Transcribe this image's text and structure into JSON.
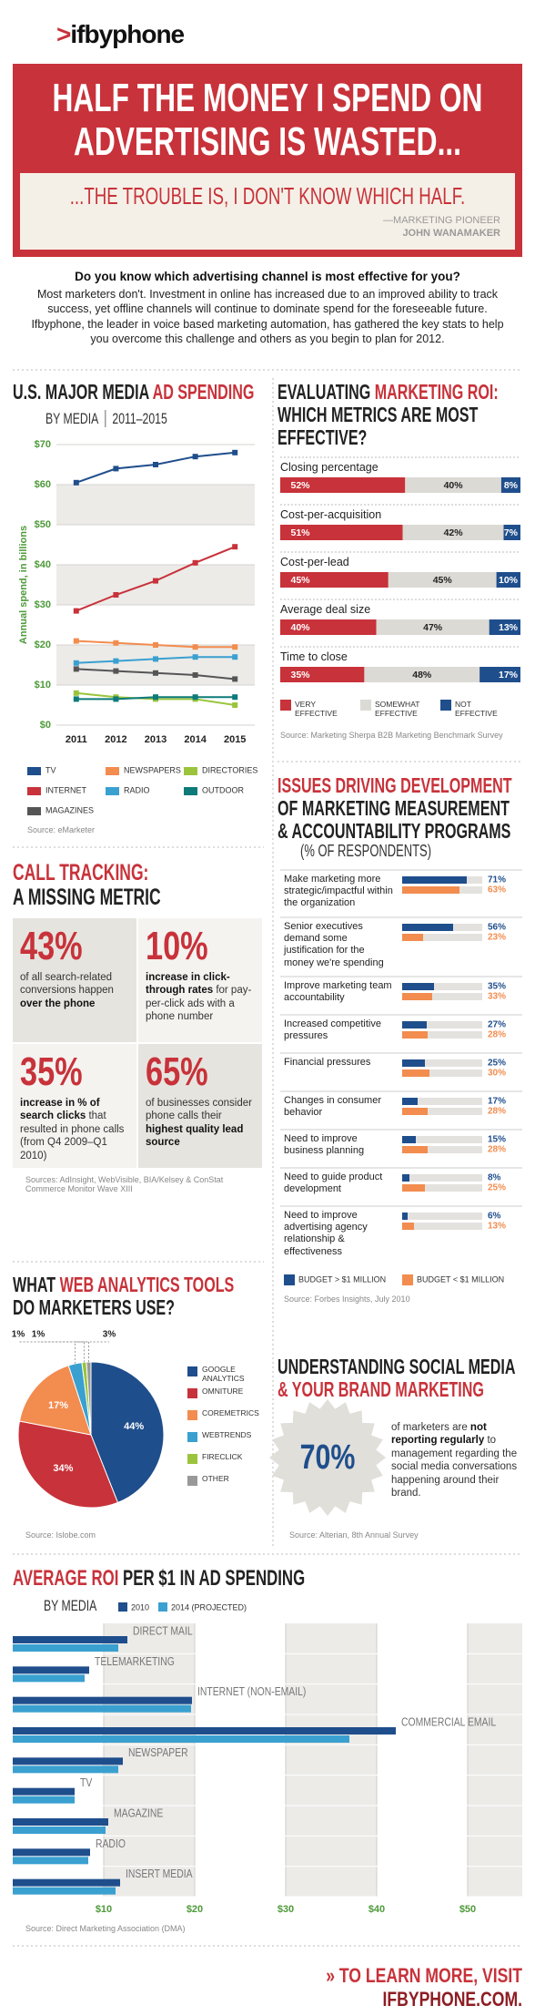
{
  "header": {
    "logo_mark": ">",
    "logo": "ifbyphone",
    "headline": "HALF THE MONEY I SPEND ON ADVERTISING IS WASTED...",
    "subhead": "...THE TROUBLE IS, I DON'T KNOW WHICH HALF.",
    "attribution_role": "—MARKETING PIONEER",
    "attribution_name": "JOHN WANAMAKER"
  },
  "intro": {
    "question": "Do you know which advertising channel is most effective for you?",
    "text": "Most marketers don't. Investment in online has increased due to an improved ability to track success, yet offline channels will continue to dominate spend for the foreseeable future. Ifbyphone, the leader in voice based marketing automation, has gathered the key stats to help you overcome this challenge and others as you begin to plan for 2012."
  },
  "call_tracking": {
    "title": [
      [
        {
          "text": "CALL TRACKING:",
          "accent": true
        }
      ],
      [
        "A MISSING METRIC"
      ]
    ],
    "stats": [
      {
        "value": "43%",
        "parts": [
          {
            "text": "of all search-related conversions happen ",
            "bold": false
          },
          {
            "text": "over the phone",
            "bold": true
          }
        ]
      },
      {
        "value": "10%",
        "parts": [
          {
            "text": "increase in click-through rates",
            "bold": true
          },
          {
            "text": " for pay-per-click ads with a phone number",
            "bold": false
          }
        ]
      },
      {
        "value": "35%",
        "parts": [
          {
            "text": "increase in % of search clicks",
            "bold": true
          },
          {
            "text": " that resulted in phone calls (from Q4 2009–Q1 2010)",
            "bold": false
          }
        ]
      },
      {
        "value": "65%",
        "parts": [
          {
            "text": "of businesses consider phone calls their ",
            "bold": false
          },
          {
            "text": "highest quality lead source",
            "bold": true
          }
        ]
      }
    ],
    "source": "Sources: AdInsight, WebVisible, BIA/Kelsey & ConStat Commerce Monitor Wave XIII"
  },
  "social_media": {
    "title": [
      [
        "UNDERSTANDING SOCIAL MEDIA"
      ],
      [
        {
          "text": "& YOUR BRAND MARKETING",
          "accent": true
        }
      ]
    ],
    "stat": "70%",
    "parts": [
      {
        "text": "of marketers are ",
        "bold": false
      },
      {
        "text": "not reporting regularly",
        "bold": true
      },
      {
        "text": " to management regarding the social media conversations happening around their brand.",
        "bold": false
      }
    ],
    "source": "Source: Alterian, 8th Annual Survey"
  },
  "chart_data": [
    {
      "type": "line",
      "title": [
        [
          "U.S. MAJOR MEDIA ",
          {
            "text": "AD SPENDING",
            "accent": true
          }
        ]
      ],
      "subtitle": "BY MEDIA",
      "period": "2011–2015",
      "ylabel": "Annual spend, in billions",
      "categories": [
        "2011",
        "2012",
        "2013",
        "2014",
        "2015"
      ],
      "ylim": [
        0,
        70
      ],
      "yticks": [
        {
          "value": 0,
          "label": "$0"
        },
        {
          "value": 10,
          "label": "$10"
        },
        {
          "value": 20,
          "label": "$20"
        },
        {
          "value": 30,
          "label": "$30"
        },
        {
          "value": 40,
          "label": "$40"
        },
        {
          "value": 50,
          "label": "$50"
        },
        {
          "value": 60,
          "label": "$60"
        },
        {
          "value": 70,
          "label": "$70"
        }
      ],
      "grid": true,
      "series": [
        {
          "name": "TV",
          "color": "#1f4e8c",
          "values": [
            60.5,
            64,
            65,
            67,
            68
          ]
        },
        {
          "name": "NEWSPAPERS",
          "color": "#f28c4f",
          "values": [
            21,
            20.5,
            20,
            19.5,
            19.5
          ]
        },
        {
          "name": "DIRECTORIES",
          "color": "#9bc43c",
          "values": [
            8,
            7,
            6.5,
            6.5,
            5
          ]
        },
        {
          "name": "INTERNET",
          "color": "#c8323a",
          "values": [
            28.5,
            32.5,
            36,
            40.5,
            44.5
          ]
        },
        {
          "name": "RADIO",
          "color": "#3aa0d0",
          "values": [
            15.5,
            16,
            16.5,
            17,
            17
          ]
        },
        {
          "name": "OUTDOOR",
          "color": "#0e7a7a",
          "values": [
            6.5,
            6.5,
            7,
            7,
            7
          ]
        },
        {
          "name": "MAGAZINES",
          "color": "#555555",
          "values": [
            14,
            13.5,
            13,
            12.5,
            11.5
          ]
        }
      ],
      "source": "Source: eMarketer"
    },
    {
      "type": "stacked_bar",
      "title": [
        [
          "EVALUATING ",
          {
            "text": "MARKETING ROI:",
            "accent": true
          }
        ],
        [
          "WHICH METRICS ARE MOST"
        ],
        [
          "EFFECTIVE?"
        ]
      ],
      "categories": [
        "Closing percentage",
        "Cost-per-acquisition",
        "Cost-per-lead",
        "Average deal size",
        "Time to close"
      ],
      "series": [
        {
          "name": "VERY EFFECTIVE",
          "color": "#c8323a",
          "values": [
            52,
            51,
            45,
            40,
            35
          ],
          "value_labels": [
            "52%",
            "51%",
            "45%",
            "40%",
            "35%"
          ]
        },
        {
          "name": "SOMEWHAT EFFECTIVE",
          "color": "#dcdad5",
          "values": [
            40,
            42,
            45,
            47,
            48
          ],
          "value_labels": [
            "40%",
            "42%",
            "45%",
            "47%",
            "48%"
          ]
        },
        {
          "name": "NOT EFFECTIVE",
          "color": "#1f4e8c",
          "values": [
            8,
            7,
            10,
            13,
            17
          ],
          "value_labels": [
            "8%",
            "7%",
            "10%",
            "13%",
            "17%"
          ]
        }
      ],
      "source": "Source: Marketing Sherpa B2B Marketing Benchmark Survey"
    },
    {
      "type": "grouped_bar",
      "title": [
        [
          {
            "text": "ISSUES DRIVING DEVELOPMENT",
            "accent": true
          }
        ],
        [
          "OF MARKETING MEASUREMENT"
        ],
        [
          "& ACCOUNTABILITY PROGRAMS"
        ]
      ],
      "subtitle": "(% OF RESPONDENTS)",
      "categories": [
        "Make marketing more strategic/impactful within the organization",
        "Senior executives demand some justification for the money we're spending",
        "Improve marketing team accountability",
        "Increased competitive pressures",
        "Financial pressures",
        "Changes in consumer behavior",
        "Need to improve business planning",
        "Need to guide product development",
        "Need to improve advertising agency relationship & effectiveness"
      ],
      "series": [
        {
          "name": "BUDGET > $1 MILLION",
          "color": "#1f4e8c",
          "values": [
            71,
            56,
            35,
            27,
            25,
            17,
            15,
            8,
            6
          ],
          "value_labels": [
            "71%",
            "56%",
            "35%",
            "27%",
            "25%",
            "17%",
            "15%",
            "8%",
            "6%"
          ]
        },
        {
          "name": "BUDGET < $1 MILLION",
          "color": "#f28c4f",
          "values": [
            63,
            23,
            33,
            28,
            30,
            28,
            28,
            25,
            13
          ],
          "value_labels": [
            "63%",
            "23%",
            "33%",
            "28%",
            "30%",
            "28%",
            "28%",
            "25%",
            "13%"
          ]
        }
      ],
      "source": "Source: Forbes Insights, July 2010"
    },
    {
      "type": "pie",
      "title": [
        [
          "WHAT ",
          {
            "text": "WEB ANALYTICS TOOLS",
            "accent": true
          }
        ],
        [
          "DO MARKETERS USE?"
        ]
      ],
      "categories": [
        "GOOGLE ANALYTICS",
        "OMNITURE",
        "COREMETRICS",
        "WEBTRENDS",
        "FIRECLICK",
        "OTHER"
      ],
      "values": [
        44,
        34,
        17,
        3,
        1,
        1
      ],
      "value_labels": [
        "44%",
        "34%",
        "17%",
        "3%",
        "1%",
        "1%"
      ],
      "colors": [
        "#1f4e8c",
        "#c8323a",
        "#f28c4f",
        "#3aa0d0",
        "#9bc43c",
        "#999999"
      ],
      "source": "Source: Islobe.com"
    },
    {
      "type": "hbar",
      "title": [
        [
          {
            "text": "AVERAGE ROI",
            "accent": true
          },
          " PER $1 IN AD SPENDING"
        ]
      ],
      "subtitle": "BY MEDIA",
      "categories": [
        "DIRECT MAIL",
        "TELEMARKETING",
        "INTERNET (NON-EMAIL)",
        "COMMERCIAL EMAIL",
        "NEWSPAPER",
        "TV",
        "MAGAZINE",
        "RADIO",
        "INSERT MEDIA"
      ],
      "xlim": [
        0,
        56
      ],
      "xticks": [
        {
          "value": 10,
          "label": "$10"
        },
        {
          "value": 20,
          "label": "$20"
        },
        {
          "value": 30,
          "label": "$30"
        },
        {
          "value": 40,
          "label": "$40"
        },
        {
          "value": 50,
          "label": "$50"
        }
      ],
      "series": [
        {
          "name": "2010",
          "color": "#1f4e8c",
          "values": [
            12.6,
            8.4,
            19.7,
            42.1,
            12.1,
            6.8,
            10.5,
            8.5,
            11.8
          ]
        },
        {
          "name": "2014 (PROJECTED)",
          "color": "#3aa0d0",
          "values": [
            11.6,
            7.9,
            19.6,
            37,
            11.6,
            6.8,
            10.2,
            8.3,
            11.3
          ]
        }
      ],
      "source": "Source: Direct Marketing Association (DMA)"
    }
  ],
  "footer": {
    "text": "» TO LEARN MORE, VISIT ",
    "link": "IFBYPHONE.COM."
  }
}
